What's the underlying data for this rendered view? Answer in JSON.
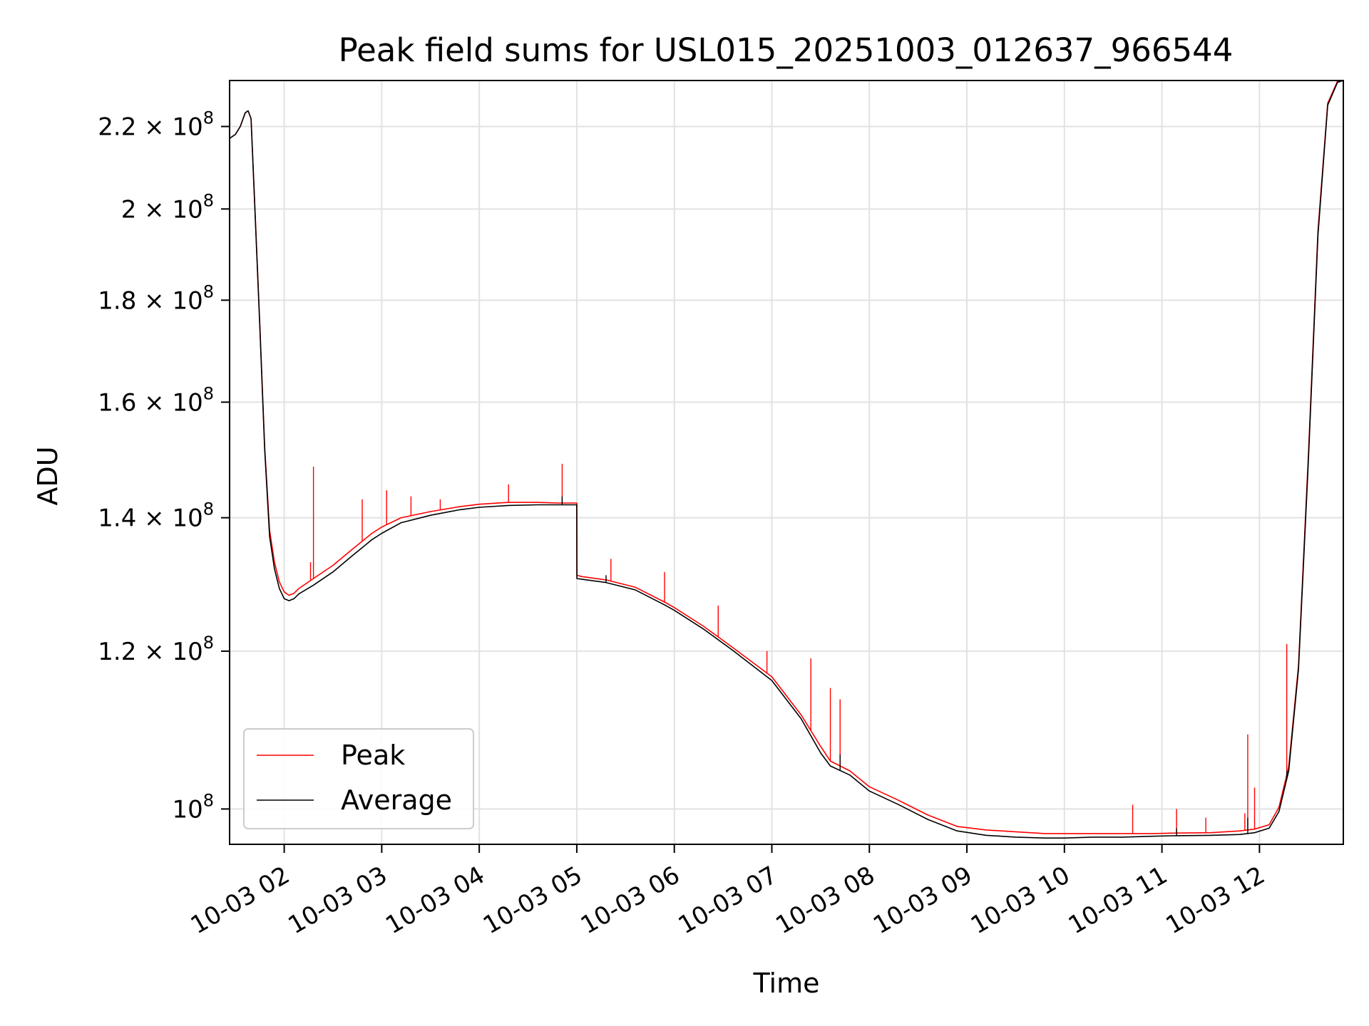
{
  "chart_data": {
    "type": "line",
    "title": "Peak field sums for USL015_20251003_012637_966544",
    "xlabel": "Time",
    "ylabel": "ADU",
    "yscale": "log",
    "grid": true,
    "legend_loc": "lower left",
    "xlim": [
      1.44,
      12.86
    ],
    "ylim": [
      96000000,
      232000000
    ],
    "x_ticks": [
      {
        "value": 2,
        "label": "10-03 02"
      },
      {
        "value": 3,
        "label": "10-03 03"
      },
      {
        "value": 4,
        "label": "10-03 04"
      },
      {
        "value": 5,
        "label": "10-03 05"
      },
      {
        "value": 6,
        "label": "10-03 06"
      },
      {
        "value": 7,
        "label": "10-03 07"
      },
      {
        "value": 8,
        "label": "10-03 08"
      },
      {
        "value": 9,
        "label": "10-03 09"
      },
      {
        "value": 10,
        "label": "10-03 10"
      },
      {
        "value": 11,
        "label": "10-03 11"
      },
      {
        "value": 12,
        "label": "10-03 12"
      }
    ],
    "y_ticks": [
      {
        "value": 100000000,
        "mant": "",
        "exp": "8"
      },
      {
        "value": 120000000,
        "mant": "1.2",
        "exp": "8"
      },
      {
        "value": 140000000,
        "mant": "1.4",
        "exp": "8"
      },
      {
        "value": 160000000,
        "mant": "1.6",
        "exp": "8"
      },
      {
        "value": 180000000,
        "mant": "1.8",
        "exp": "8"
      },
      {
        "value": 200000000,
        "mant": "2",
        "exp": "8"
      },
      {
        "value": 220000000,
        "mant": "2.2",
        "exp": "8"
      }
    ],
    "y_tick_base": "10",
    "series": [
      {
        "name": "Peak",
        "color": "#ff0000",
        "x": [
          1.44,
          1.5,
          1.55,
          1.6,
          1.63,
          1.66,
          1.7,
          1.75,
          1.8,
          1.85,
          1.9,
          1.95,
          2.0,
          2.05,
          2.1,
          2.15,
          2.3,
          2.5,
          2.7,
          2.9,
          3.0,
          3.2,
          3.5,
          3.8,
          4.0,
          4.3,
          4.6,
          4.8,
          5.0,
          5.001,
          5.05,
          5.3,
          5.6,
          5.9,
          6.0,
          6.3,
          6.6,
          7.0,
          7.3,
          7.5,
          7.6,
          7.8,
          8.0,
          8.3,
          8.6,
          8.9,
          9.2,
          9.5,
          9.8,
          10.0,
          10.3,
          10.6,
          10.9,
          11.1,
          11.5,
          11.8,
          11.95,
          12.1,
          12.2,
          12.3,
          12.4,
          12.5,
          12.6,
          12.7,
          12.8,
          12.86
        ],
        "y": [
          217000000,
          218000000,
          220000000,
          223500000,
          224000000,
          222000000,
          200000000,
          175000000,
          152000000,
          138000000,
          133000000,
          130000000,
          128500000,
          128000000,
          128300000,
          129000000,
          130500000,
          132500000,
          135000000,
          137500000,
          138500000,
          140000000,
          141000000,
          141800000,
          142200000,
          142500000,
          142500000,
          142400000,
          142400000,
          131000000,
          130800000,
          130300000,
          129200000,
          127000000,
          126200000,
          123500000,
          120500000,
          116500000,
          111500000,
          107500000,
          105700000,
          104500000,
          102600000,
          101000000,
          99300000,
          98000000,
          97600000,
          97400000,
          97200000,
          97200000,
          97200000,
          97200000,
          97200000,
          97250000,
          97300000,
          97500000,
          97700000,
          98200000,
          100200000,
          105000000,
          118000000,
          150000000,
          195000000,
          226000000,
          231800000,
          232000000
        ],
        "spikes": [
          {
            "x": 2.3,
            "y": 148500000
          },
          {
            "x": 2.27,
            "y": 133000000
          },
          {
            "x": 2.8,
            "y": 143000000
          },
          {
            "x": 3.05,
            "y": 144500000
          },
          {
            "x": 3.3,
            "y": 143500000
          },
          {
            "x": 3.6,
            "y": 143000000
          },
          {
            "x": 4.3,
            "y": 145500000
          },
          {
            "x": 4.85,
            "y": 149000000
          },
          {
            "x": 5.35,
            "y": 133500000
          },
          {
            "x": 5.9,
            "y": 131500000
          },
          {
            "x": 6.45,
            "y": 126500000
          },
          {
            "x": 6.95,
            "y": 120000000
          },
          {
            "x": 7.4,
            "y": 119000000
          },
          {
            "x": 7.6,
            "y": 115000000
          },
          {
            "x": 7.7,
            "y": 113500000
          },
          {
            "x": 10.7,
            "y": 100500000
          },
          {
            "x": 11.15,
            "y": 100000000
          },
          {
            "x": 11.45,
            "y": 99000000
          },
          {
            "x": 11.85,
            "y": 99500000
          },
          {
            "x": 11.88,
            "y": 109000000
          },
          {
            "x": 11.95,
            "y": 102500000
          },
          {
            "x": 12.28,
            "y": 121000000
          }
        ]
      },
      {
        "name": "Average",
        "color": "#000000",
        "x": [
          1.44,
          1.5,
          1.55,
          1.6,
          1.63,
          1.66,
          1.7,
          1.75,
          1.8,
          1.85,
          1.9,
          1.95,
          2.0,
          2.05,
          2.1,
          2.15,
          2.3,
          2.5,
          2.7,
          2.9,
          3.0,
          3.2,
          3.5,
          3.8,
          4.0,
          4.3,
          4.6,
          4.8,
          5.0,
          5.001,
          5.05,
          5.3,
          5.6,
          5.9,
          6.0,
          6.3,
          6.6,
          7.0,
          7.3,
          7.5,
          7.6,
          7.8,
          8.0,
          8.3,
          8.6,
          8.9,
          9.2,
          9.5,
          9.8,
          10.0,
          10.3,
          10.6,
          10.9,
          11.1,
          11.5,
          11.8,
          11.95,
          12.1,
          12.2,
          12.3,
          12.4,
          12.5,
          12.6,
          12.7,
          12.8,
          12.86
        ],
        "y": [
          217000000,
          218000000,
          220000000,
          223500000,
          224000000,
          222000000,
          199500000,
          174500000,
          151500000,
          137000000,
          132000000,
          129000000,
          127500000,
          127200000,
          127500000,
          128200000,
          129500000,
          131500000,
          134000000,
          136500000,
          137500000,
          139200000,
          140400000,
          141300000,
          141700000,
          142000000,
          142100000,
          142100000,
          142100000,
          130500000,
          130400000,
          129900000,
          128800000,
          126600000,
          125800000,
          123100000,
          120100000,
          116000000,
          111000000,
          106700000,
          105100000,
          104000000,
          102100000,
          100500000,
          98800000,
          97500000,
          97000000,
          96800000,
          96700000,
          96700000,
          96800000,
          96800000,
          96900000,
          96950000,
          97000000,
          97100000,
          97300000,
          97800000,
          99700000,
          104500000,
          117500000,
          149000000,
          194000000,
          225500000,
          231500000,
          232000000
        ],
        "spikes": [
          {
            "x": 4.85,
            "y": 143500000
          },
          {
            "x": 5.3,
            "y": 131000000
          },
          {
            "x": 7.7,
            "y": 106500000
          },
          {
            "x": 11.15,
            "y": 97800000
          },
          {
            "x": 11.88,
            "y": 99000000
          },
          {
            "x": 12.28,
            "y": 104500000
          }
        ]
      }
    ]
  }
}
